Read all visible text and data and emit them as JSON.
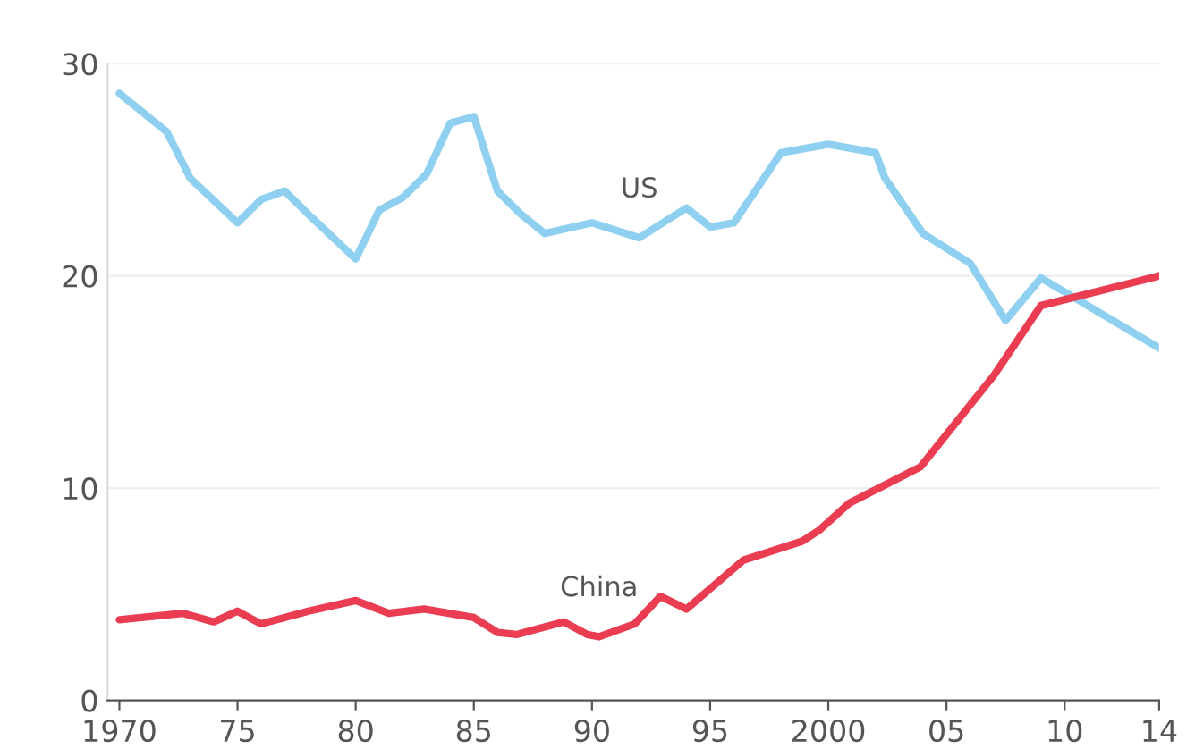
{
  "chart_data": {
    "type": "line",
    "series": [
      {
        "name": "US",
        "color": "#8fd0f0",
        "x": [
          1970,
          1972,
          1973,
          1975,
          1976,
          1977,
          1978,
          1980,
          1981,
          1982,
          1983,
          1984,
          1985,
          1986,
          1987,
          1988,
          1990,
          1992,
          1993,
          1994,
          1995,
          1996,
          1998,
          2000,
          2002,
          2002.4,
          2004,
          2006,
          2007.5,
          2009,
          2014
        ],
        "values": [
          28.6,
          26.8,
          24.6,
          22.5,
          23.6,
          24.0,
          22.9,
          20.8,
          23.1,
          23.7,
          24.8,
          27.2,
          27.5,
          24.0,
          22.9,
          22.0,
          22.5,
          21.8,
          22.5,
          23.2,
          22.3,
          22.5,
          25.8,
          26.2,
          25.8,
          24.6,
          22.0,
          20.6,
          17.9,
          19.9,
          16.6
        ]
      },
      {
        "name": "China",
        "color": "#ea3d52",
        "x": [
          1970,
          1972.7,
          1974,
          1975,
          1976,
          1978,
          1980,
          1981.4,
          1982.9,
          1985,
          1986,
          1986.8,
          1988.8,
          1989.8,
          1990.3,
          1991.8,
          1992.9,
          1994,
          1996.4,
          1998.9,
          1999.6,
          2000.9,
          2003.9,
          2007,
          2009,
          2014
        ],
        "values": [
          3.8,
          4.1,
          3.7,
          4.2,
          3.6,
          4.2,
          4.7,
          4.1,
          4.3,
          3.9,
          3.2,
          3.1,
          3.7,
          3.1,
          3.0,
          3.6,
          4.9,
          4.3,
          6.6,
          7.5,
          8.0,
          9.3,
          11.0,
          15.3,
          18.6,
          20.0
        ]
      }
    ],
    "xlim": [
      1969.5,
      2014
    ],
    "xticks": [
      {
        "value": 1970,
        "label": "1970"
      },
      {
        "value": 1975,
        "label": "75"
      },
      {
        "value": 1980,
        "label": "80"
      },
      {
        "value": 1985,
        "label": "85"
      },
      {
        "value": 1990,
        "label": "90"
      },
      {
        "value": 1995,
        "label": "95"
      },
      {
        "value": 2000,
        "label": "2000"
      },
      {
        "value": 2005,
        "label": "05"
      },
      {
        "value": 2010,
        "label": "10"
      },
      {
        "value": 2014,
        "label": "14"
      }
    ],
    "ylim": [
      0,
      30
    ],
    "yticks": [
      0,
      10,
      20,
      30
    ],
    "grid": "y",
    "marker": "none",
    "line_style": "solid"
  }
}
